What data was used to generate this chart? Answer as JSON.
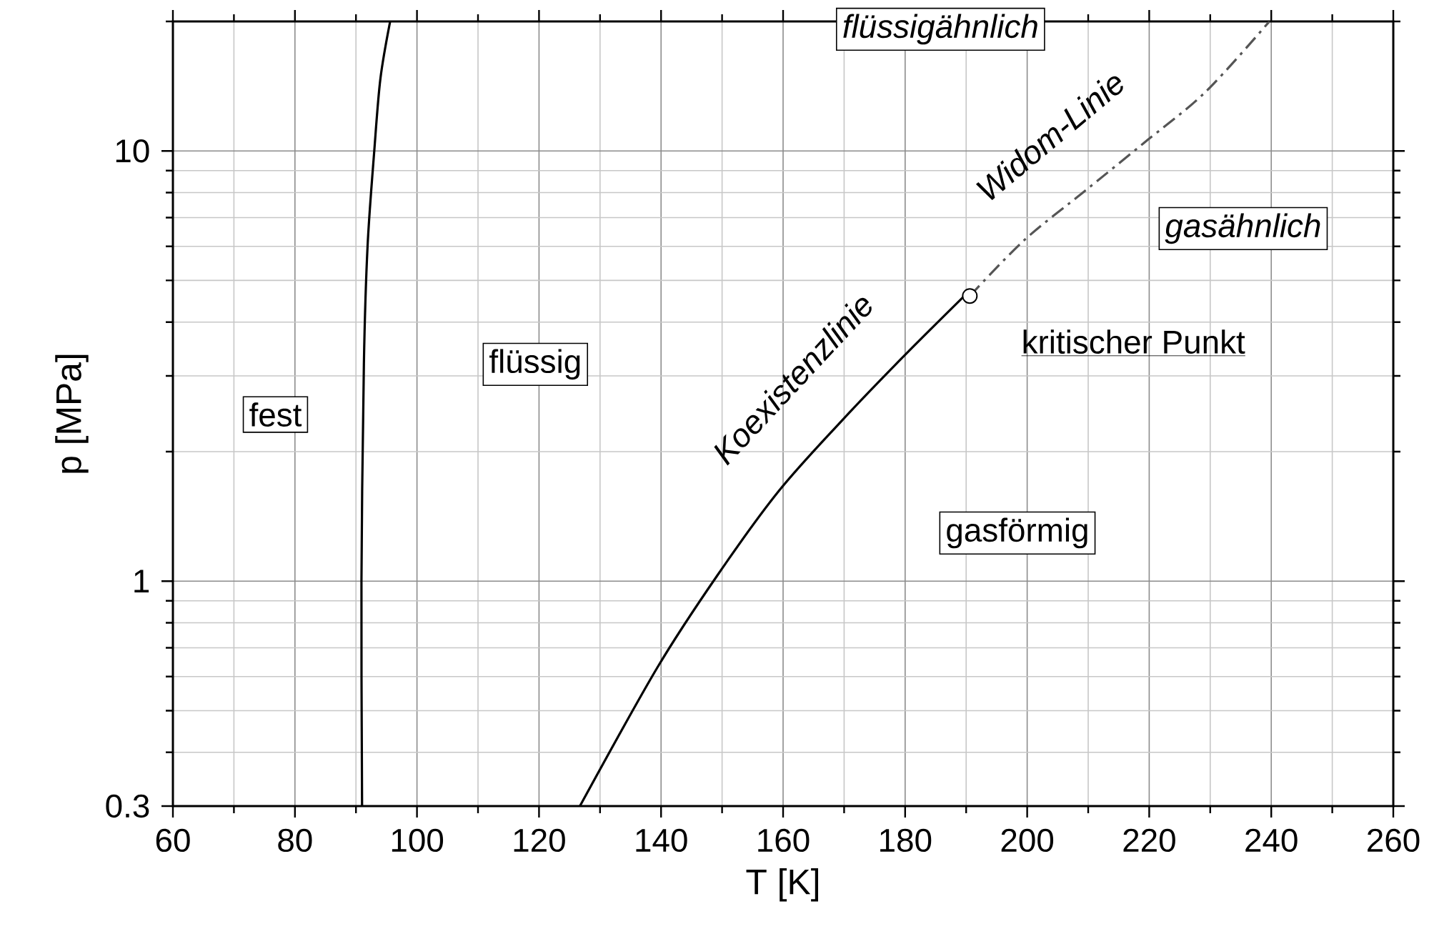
{
  "chart_data": {
    "type": "line",
    "xlabel": "T [K]",
    "ylabel": "p [MPa]",
    "xlim": [
      60,
      260
    ],
    "xticks": [
      60,
      80,
      100,
      120,
      140,
      160,
      180,
      200,
      220,
      240,
      260
    ],
    "ylim": [
      0.3,
      20
    ],
    "yticks": [
      0.3,
      1,
      10
    ],
    "log": "y",
    "grid": true,
    "series": [
      {
        "color": "#000000",
        "line_style": "solid",
        "marker": "none",
        "x": [
          91.0,
          90.9,
          91.3,
          91.9,
          93.0,
          94.0,
          95.6
        ],
        "values": [
          0.3,
          1.0,
          3.2,
          6.0,
          10.0,
          14.7,
          20.0
        ]
      },
      {
        "color": "#000000",
        "line_style": "solid",
        "marker": "none",
        "x": [
          126.7,
          139.4,
          149.2,
          159.3,
          169.5,
          179.2,
          189.7
        ],
        "values": [
          0.3,
          0.63,
          1.03,
          1.62,
          2.35,
          3.27,
          4.6
        ]
      },
      {
        "color": "#555555",
        "line_style": "dashdot",
        "marker": "none",
        "x": [
          190.6,
          199.5,
          209.6,
          219.0,
          229.2,
          239.7
        ],
        "values": [
          4.6,
          6.2,
          8.1,
          10.4,
          13.7,
          20.0
        ]
      },
      {
        "type": "scatter",
        "color": "#000000",
        "marker": "circle",
        "x": [
          190.6
        ],
        "values": [
          4.6
        ]
      }
    ],
    "annotations": [
      "fest",
      "flüssig",
      "gasförmig",
      "flüssigähnlich",
      "gasähnlich",
      "kritischer Punkt",
      "Koexistenzlinie",
      "Widom-Linie"
    ]
  }
}
